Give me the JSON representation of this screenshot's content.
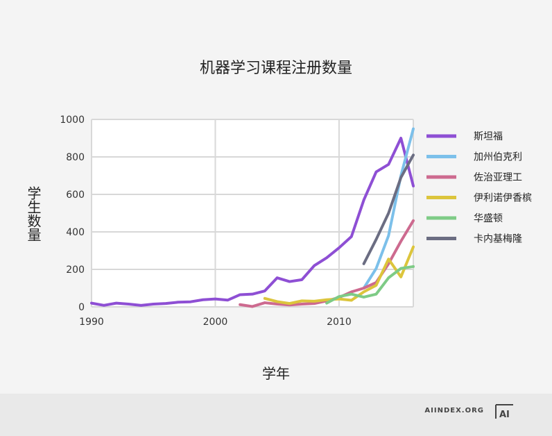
{
  "chart_data": {
    "type": "line",
    "title": "机器学习课程注册数量",
    "xlabel": "学年",
    "ylabel": "学生数量",
    "xlim": [
      1990,
      2016
    ],
    "ylim": [
      0,
      1000
    ],
    "x_ticks": [
      "1990",
      "2000",
      "2010"
    ],
    "y_ticks": [
      "0",
      "200",
      "400",
      "600",
      "800",
      "1000"
    ],
    "grid": true,
    "legend_position": "right",
    "series": [
      {
        "name": "斯坦福",
        "color": "#8e4fd4",
        "x": [
          1990,
          1991,
          1992,
          1993,
          1994,
          1995,
          1996,
          1997,
          1998,
          1999,
          2000,
          2001,
          2002,
          2003,
          2004,
          2005,
          2006,
          2007,
          2008,
          2009,
          2010,
          2011,
          2012,
          2013,
          2014,
          2015,
          2016
        ],
        "y": [
          20,
          8,
          20,
          15,
          8,
          15,
          18,
          25,
          27,
          38,
          42,
          36,
          65,
          68,
          85,
          155,
          135,
          145,
          220,
          262,
          315,
          375,
          570,
          720,
          760,
          900,
          645
        ]
      },
      {
        "name": "加州伯克利",
        "color": "#7cc0ea",
        "x": [
          2012,
          2013,
          2014,
          2015,
          2016
        ],
        "y": [
          100,
          205,
          380,
          700,
          950
        ]
      },
      {
        "name": "佐治亚理工",
        "color": "#cd6a8f",
        "x": [
          2002,
          2003,
          2004,
          2005,
          2006,
          2007,
          2008,
          2009,
          2010,
          2011,
          2012,
          2013,
          2014,
          2015,
          2016
        ],
        "y": [
          12,
          2,
          22,
          15,
          10,
          15,
          18,
          32,
          50,
          80,
          100,
          130,
          230,
          350,
          460
        ]
      },
      {
        "name": "伊利诺伊香槟",
        "color": "#dcc53c",
        "x": [
          2004,
          2005,
          2006,
          2007,
          2008,
          2009,
          2010,
          2011,
          2012,
          2013,
          2014,
          2015,
          2016
        ],
        "y": [
          45,
          28,
          18,
          32,
          30,
          38,
          42,
          35,
          80,
          115,
          255,
          160,
          320
        ]
      },
      {
        "name": "华盛顿",
        "color": "#7ecb86",
        "x": [
          2009,
          2010,
          2011,
          2012,
          2013,
          2014,
          2015,
          2016
        ],
        "y": [
          20,
          55,
          68,
          52,
          68,
          155,
          205,
          215
        ]
      },
      {
        "name": "卡内基梅隆",
        "color": "#6b6d82",
        "x": [
          2012,
          2013,
          2014,
          2015,
          2016
        ],
        "y": [
          230,
          360,
          500,
          690,
          810
        ]
      }
    ]
  },
  "footer": {
    "brand": "AIINDEX.ORG",
    "logo_text": "AI"
  }
}
